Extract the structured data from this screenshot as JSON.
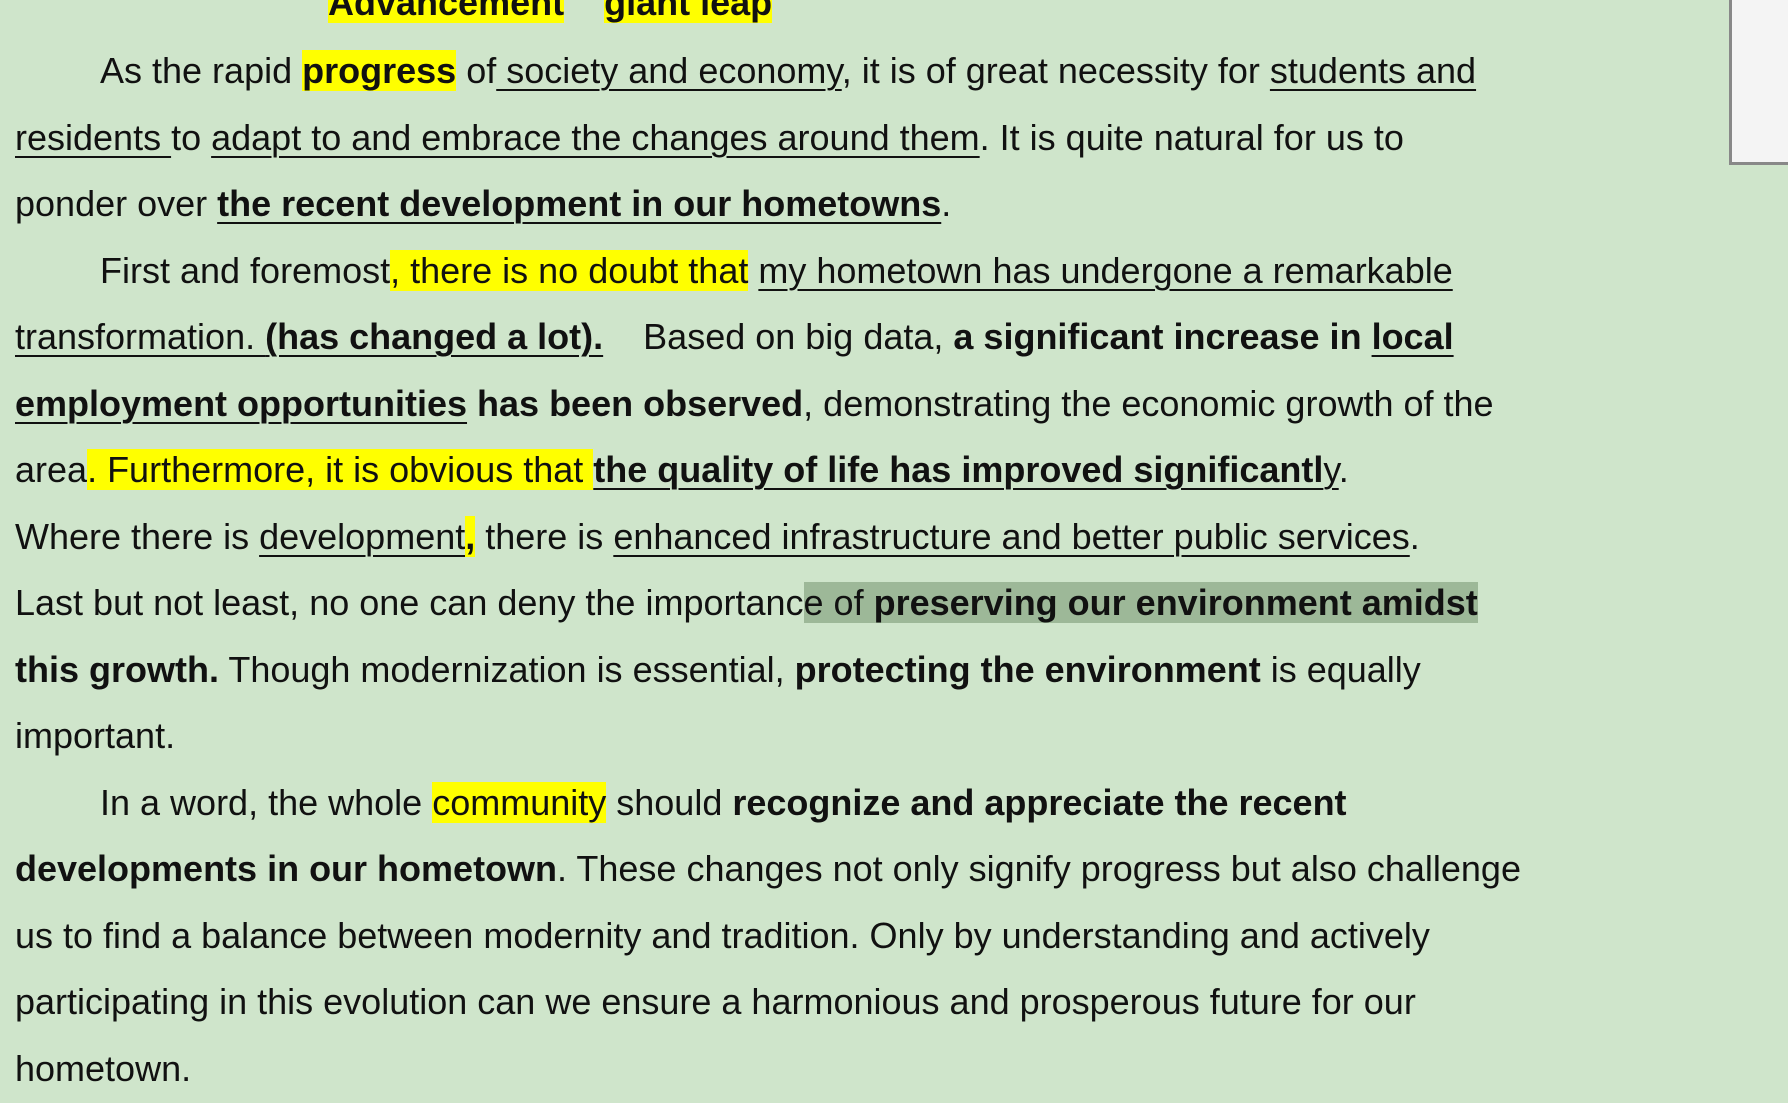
{
  "heading": {
    "runs": [
      "Advancement",
      "giant leap"
    ]
  },
  "body": {
    "lines": [
      [
        "As the rapid ",
        "progress",
        " of",
        " society and economy",
        ", it is of great necessity for ",
        "students and"
      ],
      [
        "residents ",
        "to ",
        "adapt to and embrace the changes around them",
        ". It is quite natural for us to"
      ],
      [
        "ponder over ",
        "the recent development in our hometowns",
        "."
      ],
      [
        "First and foremost",
        ", there is no doubt that",
        " ",
        "my hometown has undergone a remarkable"
      ],
      [
        "transformation. ",
        "(has changed a lot).",
        "Based on big data, ",
        "a significant increase in ",
        "local"
      ],
      [
        "employment opportunities",
        " has been observed",
        ", demonstrating the economic growth of the"
      ],
      [
        "area",
        ". Furthermore, it is obvious that ",
        "the quality of life has improved significantl",
        "y",
        "."
      ],
      [
        "Where there is ",
        "development",
        ",",
        " there is ",
        "enhanced infrastructure and better public services",
        "."
      ],
      [
        "Last but not least, no one can deny the importanc",
        "e of ",
        "preserving our environment amidst"
      ],
      [
        "this growth.",
        " Though modernization is essential, ",
        "protecting the environment",
        " is equally"
      ],
      [
        "important."
      ],
      [
        "In a word, the whole ",
        "community",
        " should ",
        "recognize and appreciate the recent"
      ],
      [
        "developments in our hometown",
        ". These changes not only signify progress but also challenge"
      ],
      [
        "us to find a balance between modernity and tradition. Only by understanding and actively"
      ],
      [
        "participating in this evolution can we ensure a harmonious and prosperous future for our"
      ],
      [
        "hometown."
      ]
    ]
  }
}
